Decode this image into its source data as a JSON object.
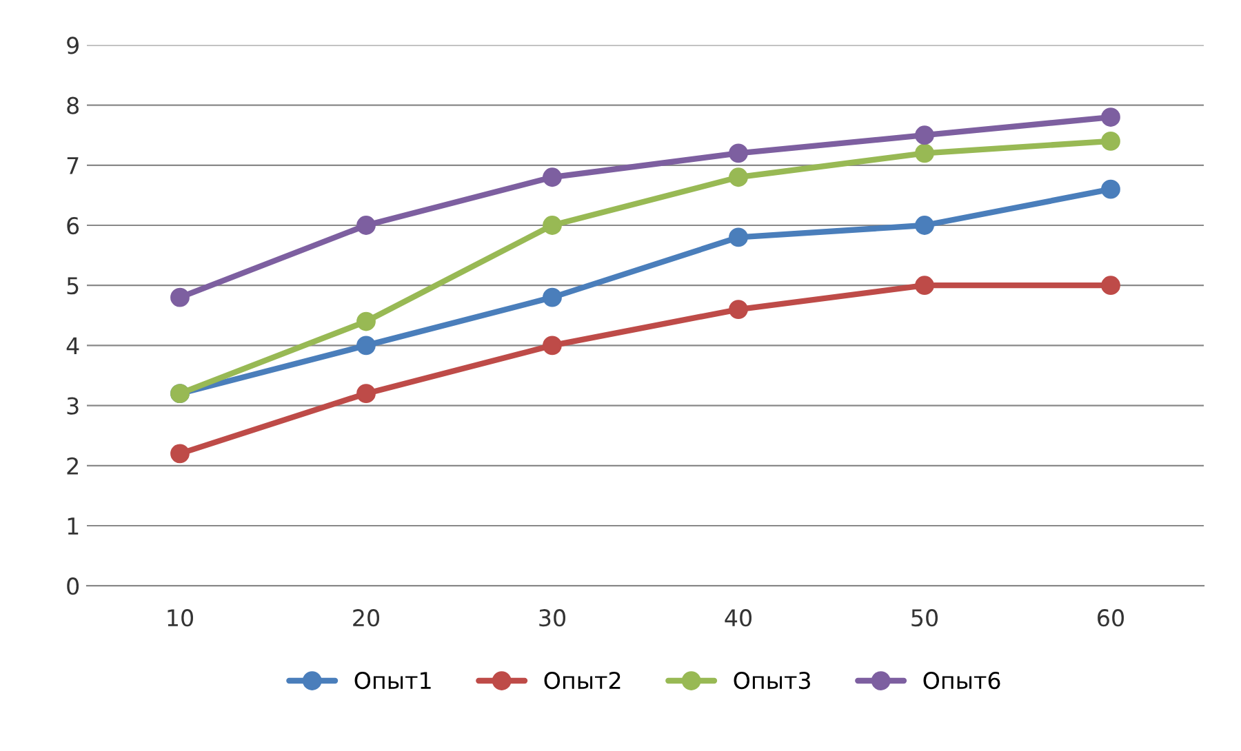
{
  "chart_data": {
    "type": "line",
    "categories": [
      "10",
      "20",
      "30",
      "40",
      "50",
      "60"
    ],
    "series": [
      {
        "name": "Опыт1",
        "color": "#4a7ebb",
        "values": [
          3.2,
          4.0,
          4.8,
          5.8,
          6.0,
          6.6
        ]
      },
      {
        "name": "Опыт2",
        "color": "#be4b48",
        "values": [
          2.2,
          3.2,
          4.0,
          4.6,
          5.0,
          5.0
        ]
      },
      {
        "name": "Опыт3",
        "color": "#98b954",
        "values": [
          3.2,
          4.4,
          6.0,
          6.8,
          7.2,
          7.4
        ]
      },
      {
        "name": "Опыт6",
        "color": "#7d5fa0",
        "values": [
          4.8,
          6.0,
          6.8,
          7.2,
          7.5,
          7.8
        ]
      }
    ],
    "ylim": [
      0,
      9
    ],
    "yticks": [
      0,
      1,
      2,
      3,
      4,
      5,
      6,
      7,
      8,
      9
    ],
    "grid": "y",
    "legend": "bottom",
    "marker": "circle",
    "line_style": "solid"
  }
}
